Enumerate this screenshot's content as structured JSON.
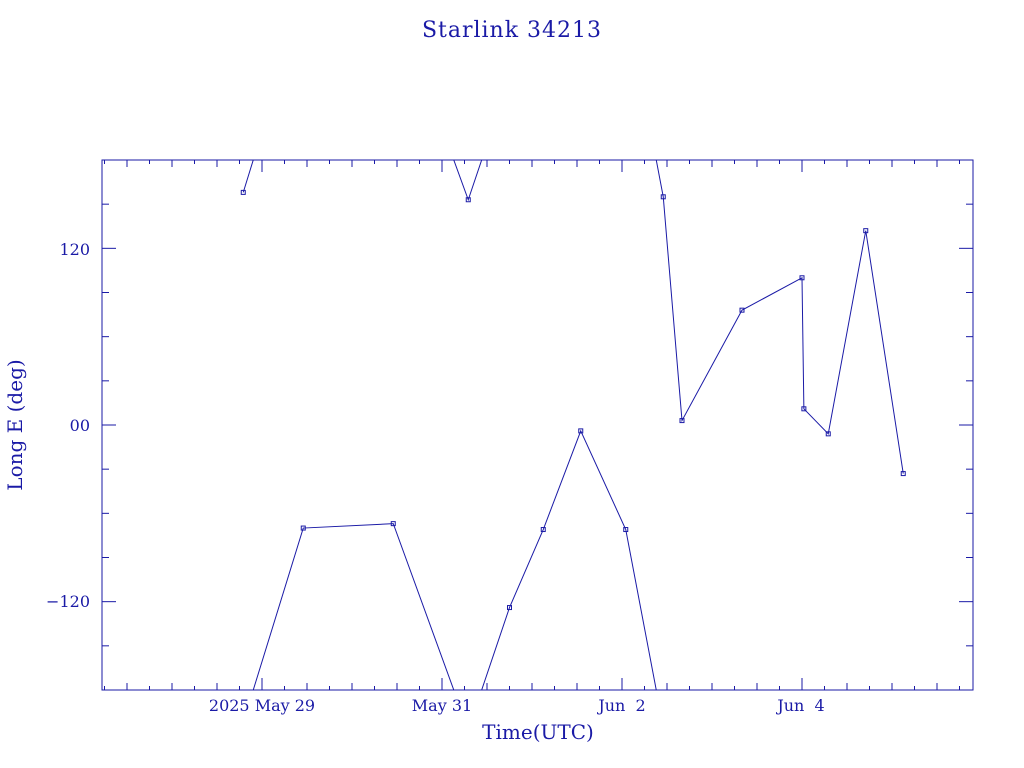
{
  "chart_data": {
    "type": "line",
    "title": "Starlink 34213",
    "xlabel": "Time(UTC)",
    "ylabel": "Long E (deg)",
    "x_tick_labels": [
      "2025 May 29",
      "May 31",
      "Jun  2",
      "Jun  4"
    ],
    "y_tick_labels": [
      "−120",
      "00",
      "120"
    ],
    "ylim": [
      -180,
      180
    ],
    "y_ticks": [
      -120,
      0,
      120
    ],
    "longitude_wraps_at": 180,
    "grid": false,
    "colors": {
      "line": "#1a1aa6",
      "frame": "#1a1aa6",
      "background": "#ffffff"
    },
    "series": [
      {
        "x": [
          "2025-05-28T19:00",
          "2025-05-29T11:00",
          "2025-05-30T11:00",
          "2025-05-31T07:00",
          "2025-05-31T18:00",
          "2025-06-01T03:00",
          "2025-06-01T13:00",
          "2025-06-02T01:00",
          "2025-06-02T11:00",
          "2025-06-02T16:00",
          "2025-06-03T08:00",
          "2025-06-04T00:00",
          "2025-06-04T00:30",
          "2025-06-04T07:00",
          "2025-06-04T17:00",
          "2025-06-05T03:00"
        ],
        "y": [
          158,
          -70,
          -67,
          153,
          -124,
          -71,
          -4,
          -71,
          155,
          3,
          78,
          100,
          11,
          -6,
          132,
          -33
        ]
      }
    ]
  }
}
